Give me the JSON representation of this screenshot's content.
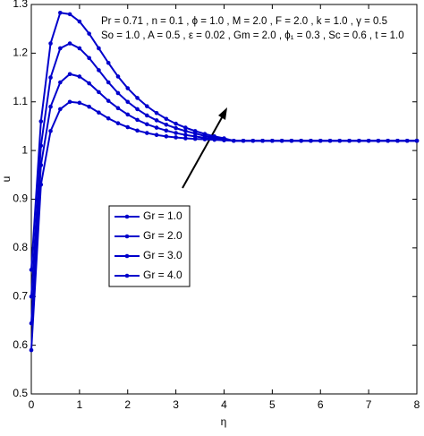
{
  "chart_data": {
    "type": "line",
    "x_label": "η",
    "y_label": "u",
    "annotations": [
      "Pr = 0.71 , n = 0.1 , ϕ = 1.0 , M = 2.0 , F = 2.0 , k = 1.0 , γ = 0.5",
      "So = 1.0 , A = 0.5 , ε = 0.02 , Gm = 2.0 , ϕ₁ = 0.3 , Sc = 0.6 , t = 1.0"
    ],
    "x": [
      0,
      0.2,
      0.4,
      0.6,
      0.8,
      1.0,
      1.2,
      1.4,
      1.6,
      1.8,
      2.0,
      2.2,
      2.4,
      2.6,
      2.8,
      3.0,
      3.2,
      3.4,
      3.6,
      3.8,
      4.0,
      4.2,
      4.4,
      4.6,
      4.8,
      5.0,
      5.2,
      5.4,
      5.6,
      5.8,
      6.0,
      6.2,
      6.4,
      6.6,
      6.8,
      7.0,
      7.2,
      7.4,
      7.6,
      7.8,
      8.0
    ],
    "series": [
      {
        "name": "Gr = 1.0",
        "color": "#0000cc",
        "values": [
          0.59,
          0.93,
          1.04,
          1.085,
          1.1,
          1.098,
          1.09,
          1.078,
          1.066,
          1.056,
          1.048,
          1.041,
          1.036,
          1.032,
          1.029,
          1.027,
          1.025,
          1.024,
          1.023,
          1.022,
          1.021,
          1.02,
          1.02,
          1.02,
          1.02,
          1.02,
          1.02,
          1.02,
          1.02,
          1.02,
          1.02,
          1.02,
          1.02,
          1.02,
          1.02,
          1.02,
          1.02,
          1.02,
          1.02,
          1.02,
          1.02
        ]
      },
      {
        "name": "Gr = 2.0",
        "color": "#0000cc",
        "values": [
          0.645,
          0.97,
          1.09,
          1.14,
          1.157,
          1.152,
          1.138,
          1.12,
          1.102,
          1.087,
          1.074,
          1.063,
          1.054,
          1.047,
          1.041,
          1.036,
          1.032,
          1.029,
          1.026,
          1.024,
          1.022,
          1.02,
          1.02,
          1.02,
          1.02,
          1.02,
          1.02,
          1.02,
          1.02,
          1.02,
          1.02,
          1.02,
          1.02,
          1.02,
          1.02,
          1.02,
          1.02,
          1.02,
          1.02,
          1.02,
          1.02
        ]
      },
      {
        "name": "Gr = 3.0",
        "color": "#0000cc",
        "values": [
          0.7,
          1.01,
          1.15,
          1.21,
          1.22,
          1.21,
          1.19,
          1.165,
          1.14,
          1.118,
          1.1,
          1.085,
          1.072,
          1.062,
          1.053,
          1.046,
          1.04,
          1.035,
          1.03,
          1.026,
          1.023,
          1.02,
          1.02,
          1.02,
          1.02,
          1.02,
          1.02,
          1.02,
          1.02,
          1.02,
          1.02,
          1.02,
          1.02,
          1.02,
          1.02,
          1.02,
          1.02,
          1.02,
          1.02,
          1.02,
          1.02
        ]
      },
      {
        "name": "Gr = 4.0",
        "color": "#0000cc",
        "values": [
          0.755,
          1.06,
          1.22,
          1.283,
          1.28,
          1.265,
          1.24,
          1.21,
          1.18,
          1.152,
          1.128,
          1.108,
          1.091,
          1.077,
          1.065,
          1.055,
          1.047,
          1.04,
          1.034,
          1.029,
          1.025,
          1.02,
          1.02,
          1.02,
          1.02,
          1.02,
          1.02,
          1.02,
          1.02,
          1.02,
          1.02,
          1.02,
          1.02,
          1.02,
          1.02,
          1.02,
          1.02,
          1.02,
          1.02,
          1.02,
          1.02
        ]
      }
    ],
    "xlim": [
      0,
      8
    ],
    "xticks": [
      0,
      1,
      2,
      3,
      4,
      5,
      6,
      7,
      8
    ],
    "ylim": [
      0.5,
      1.3
    ],
    "yticks": [
      0.5,
      0.6,
      0.7,
      0.8,
      0.9,
      1,
      1.1,
      1.2,
      1.3
    ],
    "grid": false
  }
}
